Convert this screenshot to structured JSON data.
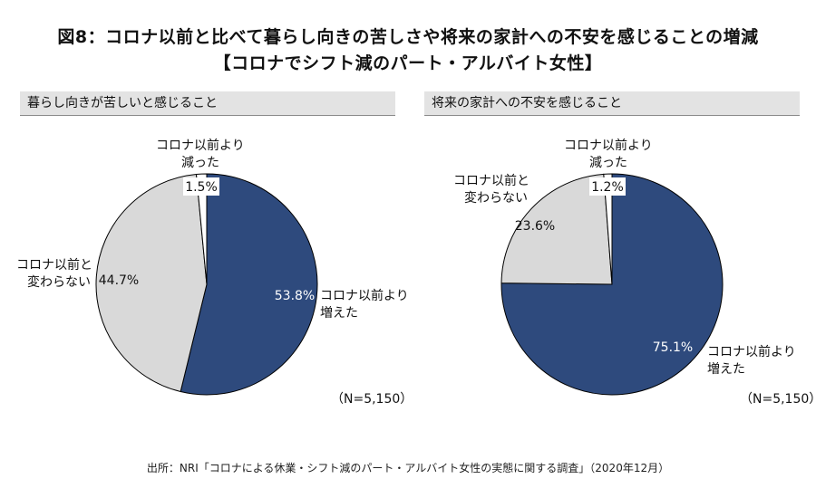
{
  "title": {
    "line1": "図8：コロナ以前と比べて暮らし向きの苦しさや将来の家計への不安を感じることの増減",
    "line2": "【コロナでシフト減のパート・アルバイト女性】"
  },
  "source": "出所：NRI「コロナによる休業・シフト減のパート・アルバイト女性の実態に関する調査」（2020年12月）",
  "colors": {
    "increased": "#2e4a7d",
    "unchanged": "#d9d9d9",
    "decreased": "#ffffff",
    "outline": "#000000"
  },
  "chart_data": [
    {
      "type": "pie",
      "title": "暮らし向きが苦しいと感じること",
      "n_label": "（N=5,150）",
      "slices": [
        {
          "key": "increased",
          "label": [
            "コロナ以前より",
            "増えた"
          ],
          "value": 53.8,
          "value_label": "53.8%"
        },
        {
          "key": "unchanged",
          "label": [
            "コロナ以前と",
            "変わらない"
          ],
          "value": 44.7,
          "value_label": "44.7%"
        },
        {
          "key": "decreased",
          "label": [
            "コロナ以前より",
            "減った"
          ],
          "value": 1.5,
          "value_label": "1.5%"
        }
      ]
    },
    {
      "type": "pie",
      "title": "将来の家計への不安を感じること",
      "n_label": "（N=5,150）",
      "slices": [
        {
          "key": "increased",
          "label": [
            "コロナ以前より",
            "増えた"
          ],
          "value": 75.1,
          "value_label": "75.1%"
        },
        {
          "key": "unchanged",
          "label": [
            "コロナ以前と",
            "変わらない"
          ],
          "value": 23.6,
          "value_label": "23.6%"
        },
        {
          "key": "decreased",
          "label": [
            "コロナ以前より",
            "減った"
          ],
          "value": 1.2,
          "value_label": "1.2%"
        }
      ]
    }
  ]
}
